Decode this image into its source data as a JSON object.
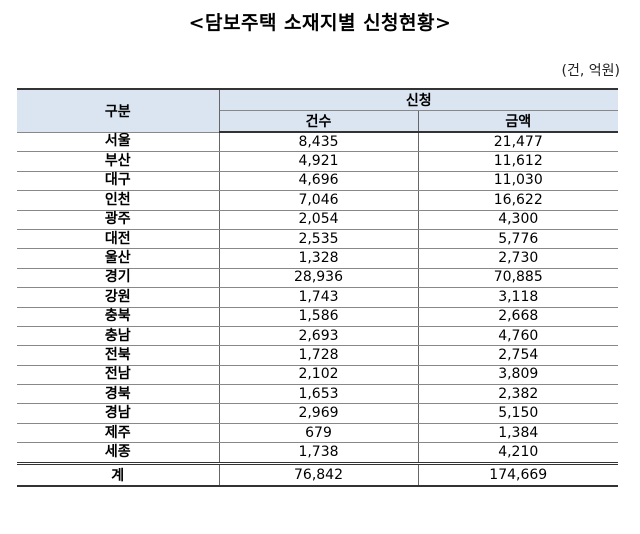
{
  "title": "<담보주택 소재지별 신청현황>",
  "unit": "(건, 억원)",
  "header": {
    "category": "구분",
    "group": "신청",
    "count": "건수",
    "amount": "금액"
  },
  "rows": [
    {
      "region": "서울",
      "count": "8,435",
      "amount": "21,477"
    },
    {
      "region": "부산",
      "count": "4,921",
      "amount": "11,612"
    },
    {
      "region": "대구",
      "count": "4,696",
      "amount": "11,030"
    },
    {
      "region": "인천",
      "count": "7,046",
      "amount": "16,622"
    },
    {
      "region": "광주",
      "count": "2,054",
      "amount": "4,300"
    },
    {
      "region": "대전",
      "count": "2,535",
      "amount": "5,776"
    },
    {
      "region": "울산",
      "count": "1,328",
      "amount": "2,730"
    },
    {
      "region": "경기",
      "count": "28,936",
      "amount": "70,885"
    },
    {
      "region": "강원",
      "count": "1,743",
      "amount": "3,118"
    },
    {
      "region": "충북",
      "count": "1,586",
      "amount": "2,668"
    },
    {
      "region": "충남",
      "count": "2,693",
      "amount": "4,760"
    },
    {
      "region": "전북",
      "count": "1,728",
      "amount": "2,754"
    },
    {
      "region": "전남",
      "count": "2,102",
      "amount": "3,809"
    },
    {
      "region": "경북",
      "count": "1,653",
      "amount": "2,382"
    },
    {
      "region": "경남",
      "count": "2,969",
      "amount": "5,150"
    },
    {
      "region": "제주",
      "count": "679",
      "amount": "1,384"
    },
    {
      "region": "세종",
      "count": "1,738",
      "amount": "4,210"
    }
  ],
  "total": {
    "region": "계",
    "count": "76,842",
    "amount": "174,669"
  }
}
